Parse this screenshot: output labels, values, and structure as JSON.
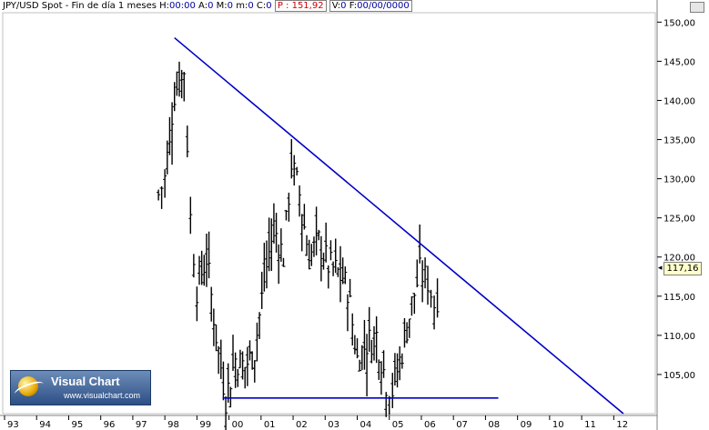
{
  "header": {
    "symbol": "JPY/USD Spot",
    "sep1": " - ",
    "interval": "Fin de día 1 meses",
    "h_label": "H:",
    "h_value": "00:00",
    "a_label": "A:",
    "a_value": "0",
    "m_label": "M:",
    "m_value": "0",
    "min_label": "m:",
    "min_value": "0",
    "c_label": "C:",
    "c_value": "0",
    "p_label": "P :",
    "p_value": "151,92",
    "v_label": "V:",
    "v_value": "0",
    "f_label": "F:",
    "f_value": "00/00/0000"
  },
  "price_axis": {
    "labels": [
      "150,00",
      "145,00",
      "140,00",
      "135,00",
      "130,00",
      "125,00",
      "120,00",
      "115,00",
      "110,00",
      "105,00"
    ],
    "current_price": "117,16"
  },
  "time_axis": {
    "labels": [
      "93",
      "94",
      "95",
      "96",
      "97",
      "98",
      "99",
      "00",
      "01",
      "02",
      "03",
      "04",
      "05",
      "06",
      "07",
      "08",
      "09",
      "10",
      "11",
      "12"
    ]
  },
  "logo": {
    "title": "Visual Chart",
    "url": "www.visualchart.com"
  },
  "colors": {
    "trendline": "#0000c8",
    "bars": "#000000",
    "background": "#ffffff"
  },
  "chart_data": {
    "type": "bar",
    "title": "JPY/USD Spot",
    "interval": "monthly",
    "ylim": [
      101,
      150
    ],
    "x_ticks": [
      "93",
      "94",
      "95",
      "96",
      "97",
      "98",
      "99",
      "00",
      "01",
      "02",
      "03",
      "04",
      "05",
      "06",
      "07",
      "08",
      "09",
      "10",
      "11",
      "12"
    ],
    "approx_close_series": [
      {
        "x": "1997.8",
        "y": 128
      },
      {
        "x": "1998.0",
        "y": 130
      },
      {
        "x": "1998.3",
        "y": 141
      },
      {
        "x": "1998.6",
        "y": 144
      },
      {
        "x": "1998.8",
        "y": 125
      },
      {
        "x": "1999.0",
        "y": 116
      },
      {
        "x": "1999.3",
        "y": 120
      },
      {
        "x": "1999.6",
        "y": 110
      },
      {
        "x": "1999.9",
        "y": 102
      },
      {
        "x": "2000.2",
        "y": 107
      },
      {
        "x": "2000.5",
        "y": 106
      },
      {
        "x": "2000.8",
        "y": 108
      },
      {
        "x": "2001.1",
        "y": 117
      },
      {
        "x": "2001.4",
        "y": 124
      },
      {
        "x": "2001.7",
        "y": 120
      },
      {
        "x": "2001.95",
        "y": 132
      },
      {
        "x": "2002.2",
        "y": 128
      },
      {
        "x": "2002.5",
        "y": 120
      },
      {
        "x": "2002.8",
        "y": 122
      },
      {
        "x": "2003.1",
        "y": 119
      },
      {
        "x": "2003.4",
        "y": 118
      },
      {
        "x": "2003.7",
        "y": 116
      },
      {
        "x": "2004.0",
        "y": 107
      },
      {
        "x": "2004.3",
        "y": 109
      },
      {
        "x": "2004.6",
        "y": 110
      },
      {
        "x": "2004.9",
        "y": 104
      },
      {
        "x": "2005.1",
        "y": 103
      },
      {
        "x": "2005.4",
        "y": 108
      },
      {
        "x": "2005.7",
        "y": 114
      },
      {
        "x": "2005.95",
        "y": 118
      },
      {
        "x": "2006.2",
        "y": 117
      },
      {
        "x": "2006.4",
        "y": 114
      },
      {
        "x": "2006.6",
        "y": 116
      }
    ],
    "trendlines": [
      {
        "name": "resistance",
        "from": {
          "x": "1998.3",
          "y": 148
        },
        "to": {
          "x": "2012.3",
          "y": 100
        }
      },
      {
        "name": "support",
        "from": {
          "x": "1999.8",
          "y": 102
        },
        "to": {
          "x": "2008.4",
          "y": 102
        }
      }
    ]
  }
}
